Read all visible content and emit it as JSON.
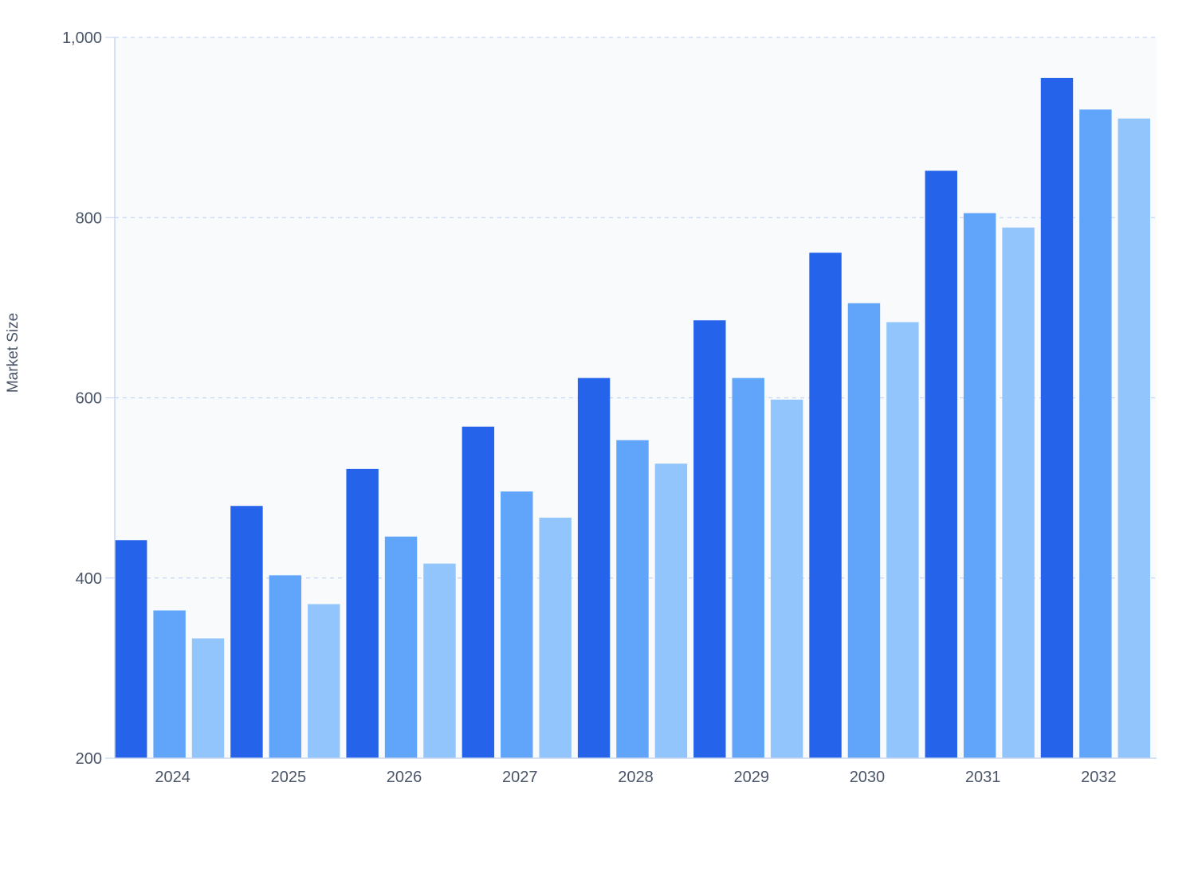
{
  "chart_data": {
    "type": "bar",
    "title": "",
    "xlabel": "",
    "ylabel": "Market Size",
    "ylim": [
      200,
      1000
    ],
    "yticks": [
      200,
      400,
      600,
      800,
      1000
    ],
    "ytick_labels": [
      "200",
      "400",
      "600",
      "800",
      "1,000"
    ],
    "categories": [
      "2024",
      "2025",
      "2026",
      "2027",
      "2028",
      "2029",
      "2030",
      "2031",
      "2032"
    ],
    "grid": true,
    "legend": "none",
    "series": [
      {
        "color": "#2563eb",
        "values": [
          442,
          480,
          521,
          568,
          622,
          686,
          761,
          852,
          955
        ]
      },
      {
        "color": "#60a5fa",
        "values": [
          364,
          403,
          446,
          496,
          553,
          622,
          705,
          805,
          920
        ]
      },
      {
        "color": "#93c5fd",
        "values": [
          333,
          371,
          416,
          467,
          527,
          598,
          684,
          789,
          910
        ]
      }
    ],
    "colors": {
      "plot_background": "#f8fafc",
      "grid": "#c7d7f0",
      "axis": "#c7d7f0",
      "text": "#4a5568"
    }
  }
}
